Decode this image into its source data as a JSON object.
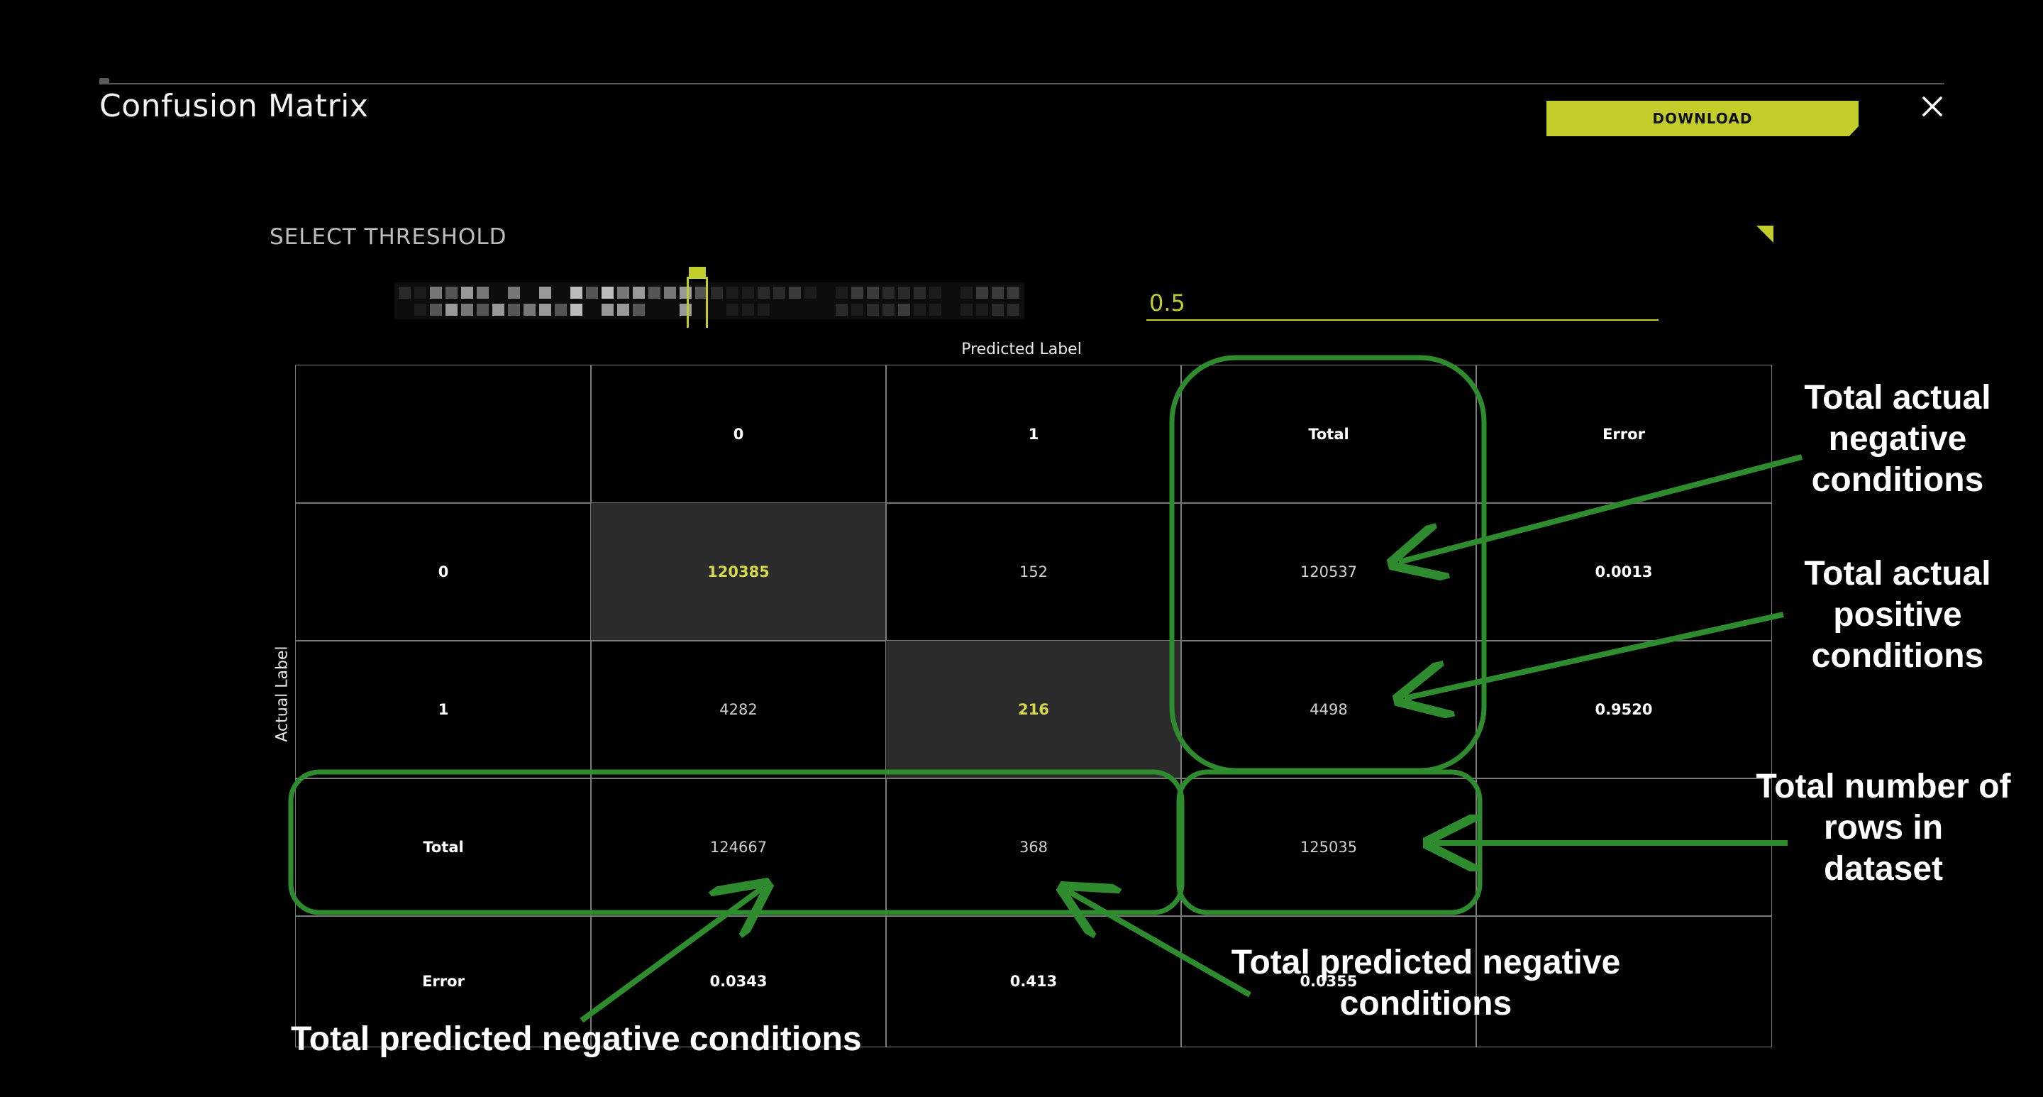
{
  "header": {
    "title": "Confusion Matrix",
    "download_label": "DOWNLOAD",
    "close_icon": "close-icon"
  },
  "colors": {
    "accent": "#c3cd2a",
    "highlight_text": "#d5d84a",
    "annotation_green": "#2e8b2e",
    "grid": "#7a7a7a"
  },
  "threshold": {
    "label": "SELECT THRESHOLD",
    "value": "0.5"
  },
  "matrix": {
    "predicted_label": "Predicted Label",
    "actual_label": "Actual Label",
    "columns": [
      "",
      "0",
      "1",
      "Total",
      "Error"
    ],
    "rows": [
      {
        "label": "0",
        "cells": [
          "120385",
          "152",
          "120537",
          "0.0013"
        ]
      },
      {
        "label": "1",
        "cells": [
          "4282",
          "216",
          "4498",
          "0.9520"
        ]
      },
      {
        "label": "Total",
        "cells": [
          "124667",
          "368",
          "125035",
          ""
        ]
      },
      {
        "label": "Error",
        "cells": [
          "0.0343",
          "0.413",
          "0.0355",
          ""
        ]
      }
    ]
  },
  "annotations": {
    "actual_negative": [
      "Total actual",
      "negative",
      "conditions"
    ],
    "actual_positive": [
      "Total actual",
      "positive",
      "conditions"
    ],
    "total_rows": [
      "Total number of",
      "rows in",
      "dataset"
    ],
    "predicted_negative_right": [
      "Total predicted negative",
      "conditions"
    ],
    "predicted_negative_bottom": "Total predicted negative conditions"
  }
}
